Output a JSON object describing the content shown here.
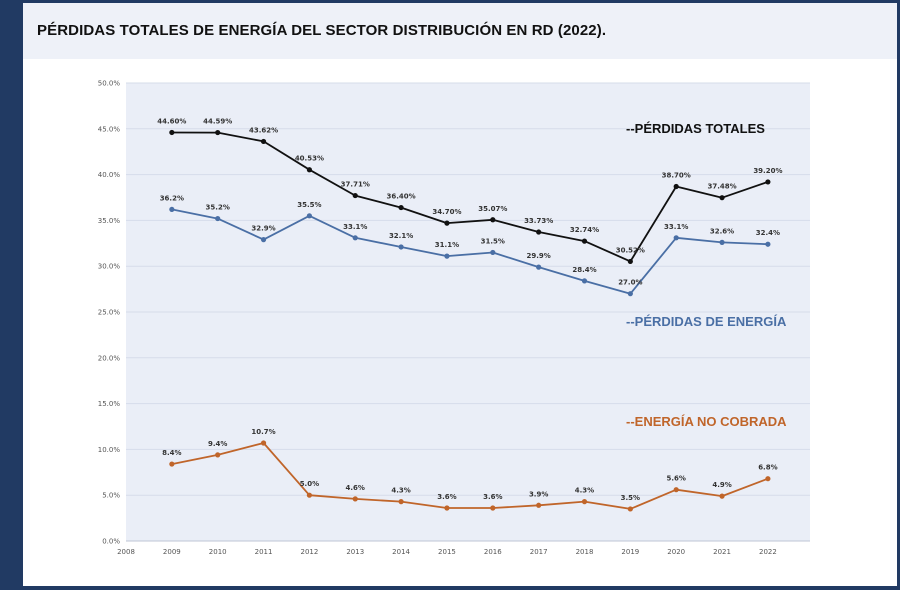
{
  "page": {
    "title": "PÉRDIDAS TOTALES DE ENERGÍA DEL SECTOR DISTRIBUCIÓN EN RD (2022)."
  },
  "chart_data": {
    "type": "line",
    "x_categories": [
      "2008",
      "2009",
      "2010",
      "2011",
      "2012",
      "2013",
      "2014",
      "2015",
      "2016",
      "2017",
      "2018",
      "2019",
      "2020",
      "2021",
      "2022"
    ],
    "ylim": [
      0,
      50
    ],
    "y_ticks": [
      "0.0%",
      "5.0%",
      "10.0%",
      "15.0%",
      "20.0%",
      "25.0%",
      "30.0%",
      "35.0%",
      "40.0%",
      "45.0%",
      "50.0%"
    ],
    "grid": true,
    "legend_position": "inside-right",
    "series": [
      {
        "name": "--PÉRDIDAS TOTALES",
        "color": "#111111",
        "x": [
          "2009",
          "2010",
          "2011",
          "2012",
          "2013",
          "2014",
          "2015",
          "2016",
          "2017",
          "2018",
          "2019",
          "2020",
          "2021",
          "2022"
        ],
        "values": [
          44.6,
          44.59,
          43.62,
          40.53,
          37.71,
          36.4,
          34.7,
          35.07,
          33.73,
          32.74,
          30.52,
          38.7,
          37.48,
          39.2
        ],
        "labels": [
          "44.60%",
          "44.59%",
          "43.62%",
          "40.53%",
          "37.71%",
          "36.40%",
          "34.70%",
          "35.07%",
          "33.73%",
          "32.74%",
          "30.52%",
          "38.70%",
          "37.48%",
          "39.20%"
        ]
      },
      {
        "name": "--PÉRDIDAS DE ENERGÍA",
        "color": "#4a6fa5",
        "x": [
          "2009",
          "2010",
          "2011",
          "2012",
          "2013",
          "2014",
          "2015",
          "2016",
          "2017",
          "2018",
          "2019",
          "2020",
          "2021",
          "2022"
        ],
        "values": [
          36.2,
          35.2,
          32.9,
          35.5,
          33.1,
          32.1,
          31.1,
          31.5,
          29.9,
          28.4,
          27.0,
          33.1,
          32.6,
          32.4
        ],
        "labels": [
          "36.2%",
          "35.2%",
          "32.9%",
          "35.5%",
          "33.1%",
          "32.1%",
          "31.1%",
          "31.5%",
          "29.9%",
          "28.4%",
          "27.0%",
          "33.1%",
          "32.6%",
          "32.4%"
        ]
      },
      {
        "name": "--ENERGÍA NO COBRADA",
        "color": "#c0652a",
        "x": [
          "2009",
          "2010",
          "2011",
          "2012",
          "2013",
          "2014",
          "2015",
          "2016",
          "2017",
          "2018",
          "2019",
          "2020",
          "2021",
          "2022"
        ],
        "values": [
          8.4,
          9.4,
          10.7,
          5.0,
          4.6,
          4.3,
          3.6,
          3.6,
          3.9,
          4.3,
          3.5,
          5.6,
          4.9,
          6.8
        ],
        "labels": [
          "8.4%",
          "9.4%",
          "10.7%",
          "5.0%",
          "4.6%",
          "4.3%",
          "3.6%",
          "3.6%",
          "3.9%",
          "4.3%",
          "3.5%",
          "5.6%",
          "4.9%",
          "6.8%"
        ]
      }
    ]
  }
}
